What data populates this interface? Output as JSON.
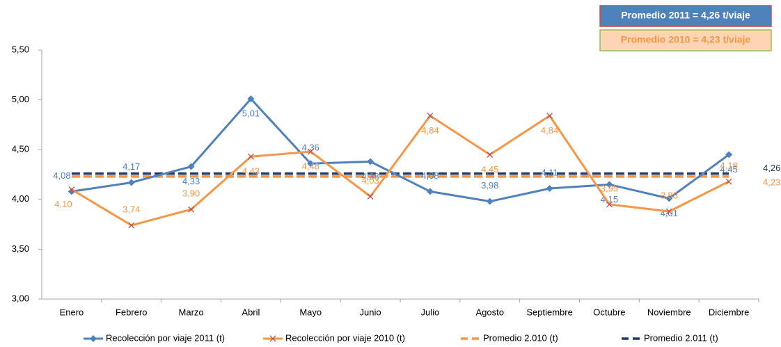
{
  "chart_data": {
    "type": "line",
    "categories": [
      "Enero",
      "Febrero",
      "Marzo",
      "Abril",
      "Mayo",
      "Junio",
      "Julio",
      "Agosto",
      "Septiembre",
      "Octubre",
      "Noviembre",
      "Diciembre"
    ],
    "ylim": [
      3.0,
      5.5
    ],
    "yticks": [
      {
        "value": 3.0,
        "label": "3,00"
      },
      {
        "value": 3.5,
        "label": "3,50"
      },
      {
        "value": 4.0,
        "label": "4,00"
      },
      {
        "value": 4.5,
        "label": "4,50"
      },
      {
        "value": 5.0,
        "label": "5,00"
      },
      {
        "value": 5.5,
        "label": "5,50"
      }
    ],
    "grid": false,
    "series": [
      {
        "name": "Recolección por viaje 2011 (t)",
        "color": "#4f81bd",
        "marker": "diamond",
        "dashed": false,
        "values": [
          4.08,
          4.17,
          4.33,
          5.01,
          4.36,
          4.38,
          4.08,
          3.98,
          4.11,
          4.15,
          4.01,
          4.45
        ],
        "value_labels": [
          "4,08",
          "4,17",
          "4,33",
          "5,01",
          "4,36",
          "4,38",
          "4,08",
          "3,98",
          "4,11",
          "4,15",
          "4,01",
          "4,45"
        ]
      },
      {
        "name": "Recolección por viaje 2010 (t)",
        "color": "#f79646",
        "marker": "x",
        "dashed": false,
        "values": [
          4.1,
          3.74,
          3.9,
          4.43,
          4.48,
          4.03,
          4.84,
          4.45,
          4.84,
          3.95,
          3.88,
          4.18
        ],
        "value_labels": [
          "4,10",
          "3,74",
          "3,90",
          "4,43",
          "4,48",
          "4,03",
          "4,84",
          "4,45",
          "4,84",
          "3,95",
          "3,88",
          "4,18"
        ]
      },
      {
        "name": "Promedio 2.010 (t)",
        "color": "#f79646",
        "marker": "none",
        "dashed": true,
        "values": [
          4.23,
          4.23,
          4.23,
          4.23,
          4.23,
          4.23,
          4.23,
          4.23,
          4.23,
          4.23,
          4.23,
          4.23
        ],
        "value_labels": [
          null,
          null,
          null,
          null,
          null,
          null,
          null,
          null,
          null,
          null,
          null,
          "4,23"
        ]
      },
      {
        "name": "Promedio 2.011 (t)",
        "color": "#1f3864",
        "marker": "none",
        "dashed": true,
        "values": [
          4.26,
          4.26,
          4.26,
          4.26,
          4.26,
          4.26,
          4.26,
          4.26,
          4.26,
          4.26,
          4.26,
          4.26
        ],
        "value_labels": [
          null,
          null,
          null,
          null,
          null,
          null,
          null,
          null,
          null,
          null,
          null,
          "4,26"
        ]
      }
    ],
    "annotations": [
      {
        "text": "Promedio 2011 = 4,26 t/viaje",
        "color": "#4f81bd"
      },
      {
        "text": "Promedio 2010 = 4,23 t/viaje",
        "color": "#fcd5b4"
      }
    ]
  }
}
